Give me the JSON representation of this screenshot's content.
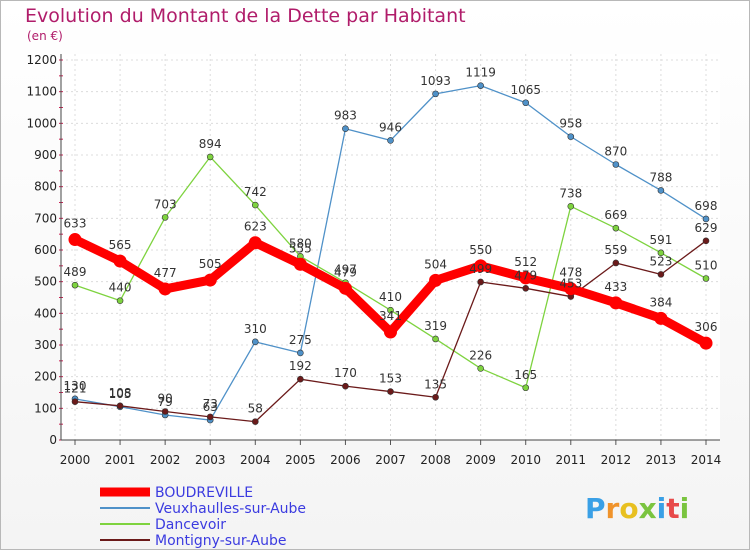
{
  "chart_data": {
    "type": "line",
    "title": "Evolution du Montant de la Dette par Habitant",
    "subtitle": "(en €)",
    "x": [
      "2000",
      "2001",
      "2002",
      "2003",
      "2004",
      "2005",
      "2006",
      "2007",
      "2008",
      "2009",
      "2010",
      "2011",
      "2012",
      "2013",
      "2014"
    ],
    "ylim": [
      0,
      1200
    ],
    "yticks": [
      0,
      100,
      200,
      300,
      400,
      500,
      600,
      700,
      800,
      900,
      1000,
      1100,
      1200
    ],
    "grid": true,
    "legend_position": "bottom-left",
    "series": [
      {
        "name": "BOUDREVILLE",
        "color": "#ff0000",
        "values": [
          633,
          565,
          477,
          505,
          623,
          555,
          479,
          341,
          504,
          550,
          512,
          478,
          433,
          384,
          306
        ]
      },
      {
        "name": "Veuxhaulles-sur-Aube",
        "color": "#4f91c8",
        "values": [
          130,
          105,
          79,
          63,
          310,
          275,
          983,
          946,
          1093,
          1119,
          1065,
          958,
          870,
          788,
          698
        ]
      },
      {
        "name": "Dancevoir",
        "color": "#7ed33f",
        "values": [
          489,
          440,
          703,
          894,
          742,
          580,
          497,
          410,
          319,
          226,
          165,
          738,
          669,
          591,
          510
        ]
      },
      {
        "name": "Montigny-sur-Aube",
        "color": "#6b1a1a",
        "values": [
          121,
          108,
          90,
          73,
          58,
          192,
          170,
          153,
          135,
          499,
          479,
          453,
          559,
          523,
          629
        ]
      }
    ]
  },
  "watermark": "Proxiti"
}
